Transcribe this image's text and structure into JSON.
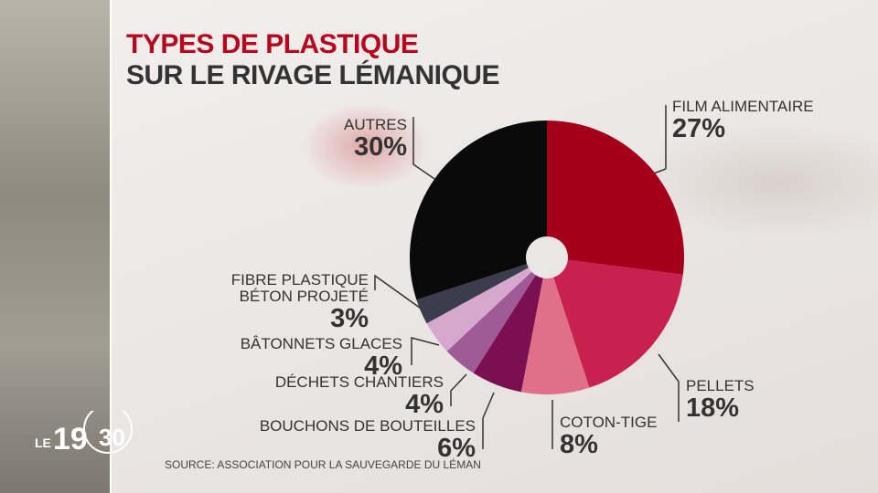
{
  "chart_data": {
    "type": "donut",
    "title": "TYPES DE PLASTIQUE",
    "subtitle": "SUR LE RIVAGE LÉMANIQUE",
    "categories": [
      "FILM ALIMENTAIRE",
      "PELLETS",
      "COTON-TIGE",
      "BOUCHONS DE BOUTEILLES",
      "DÉCHETS CHANTIERS",
      "BÂTONNETS GLACES",
      "FIBRE PLASTIQUE BÉTON PROJETÉ",
      "AUTRES"
    ],
    "values": [
      27,
      18,
      8,
      6,
      4,
      4,
      3,
      30
    ],
    "value_labels": [
      "27%",
      "18%",
      "8%",
      "6%",
      "4%",
      "4%",
      "3%",
      "30%"
    ],
    "colors": [
      "#a50019",
      "#c8204f",
      "#e0708a",
      "#7a1050",
      "#a05a95",
      "#d7a8cf",
      "#3c3d4c",
      "#0a0a0a"
    ],
    "source": "SOURCE: ASSOCIATION POUR LA SAUVEGARDE DU LÉMAN"
  },
  "logo": {
    "prefix": "LE",
    "hour": "19",
    "minute": "30"
  }
}
